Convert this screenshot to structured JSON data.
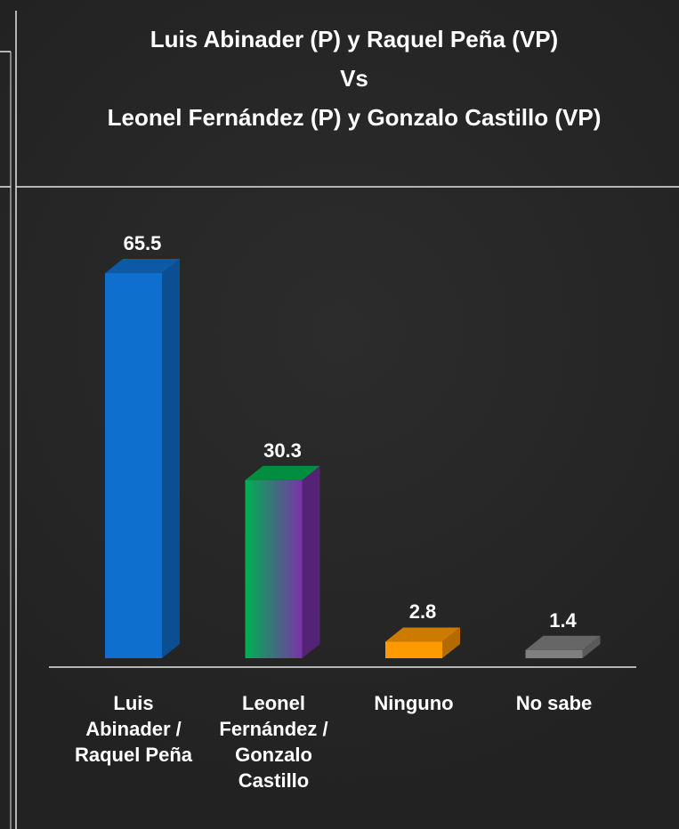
{
  "chart_data": {
    "type": "bar3d",
    "title": [
      "Luis Abinader (P) y Raquel Peña (VP)",
      "Vs",
      "Leonel Fernández (P) y Gonzalo Castillo (VP)"
    ],
    "categories": [
      "Luis Abinader / Raquel Peña",
      "Leonel Fernández / Gonzalo Castillo",
      "Ninguno",
      "No sabe"
    ],
    "values": [
      65.5,
      30.3,
      2.8,
      1.4
    ],
    "colors": [
      [
        "#0f6fcf"
      ],
      [
        "#00b050",
        "#7a32a8"
      ],
      [
        "#ff9900"
      ],
      [
        "#7f7f7f"
      ]
    ]
  }
}
